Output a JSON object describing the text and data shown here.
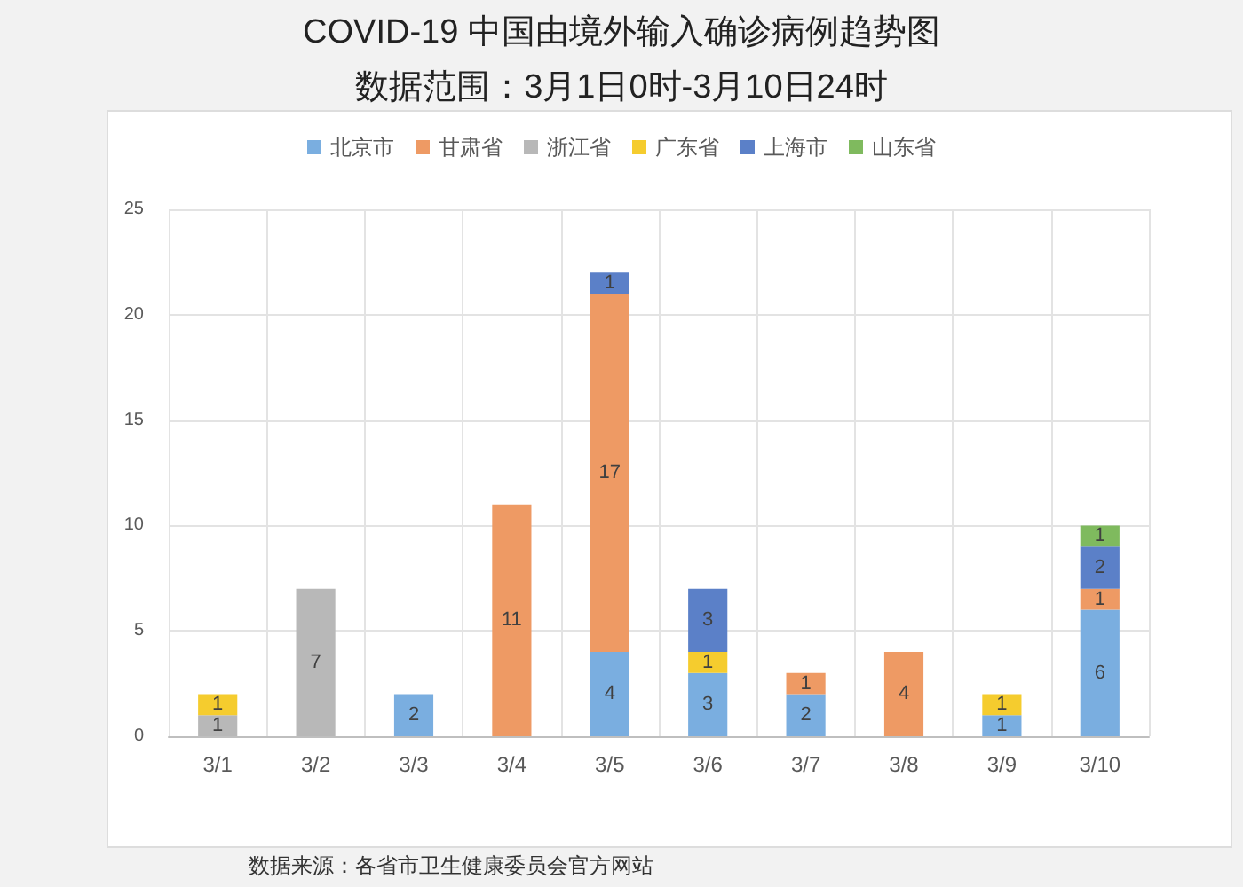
{
  "chart_data": {
    "type": "bar",
    "title": "COVID-19 中国由境外输入确诊病例趋势图",
    "subtitle": "数据范围：3月1日0时-3月10日24时",
    "categories": [
      "3/1",
      "3/2",
      "3/3",
      "3/4",
      "3/5",
      "3/6",
      "3/7",
      "3/8",
      "3/9",
      "3/10"
    ],
    "series": [
      {
        "name": "北京市",
        "color": "#7aaee0",
        "values": [
          null,
          null,
          2,
          null,
          4,
          3,
          2,
          null,
          1,
          6
        ]
      },
      {
        "name": "甘肃省",
        "color": "#ee9a64",
        "values": [
          null,
          null,
          null,
          11,
          17,
          null,
          1,
          4,
          null,
          1
        ]
      },
      {
        "name": "浙江省",
        "color": "#b8b8b8",
        "values": [
          1,
          7,
          null,
          null,
          null,
          null,
          null,
          null,
          null,
          null
        ]
      },
      {
        "name": "广东省",
        "color": "#f5cc2e",
        "values": [
          1,
          null,
          null,
          null,
          null,
          1,
          null,
          null,
          1,
          null
        ]
      },
      {
        "name": "上海市",
        "color": "#5b80c8",
        "values": [
          null,
          null,
          null,
          null,
          1,
          3,
          null,
          null,
          null,
          2
        ]
      },
      {
        "name": "山东省",
        "color": "#7fba5e",
        "values": [
          null,
          null,
          null,
          null,
          null,
          null,
          null,
          null,
          null,
          1
        ]
      }
    ],
    "stacked": true,
    "ylim": [
      0,
      25
    ],
    "yticks": [
      0,
      5,
      10,
      15,
      20,
      25
    ],
    "grid": true,
    "legend": "top",
    "data_labels": true,
    "annotations": [
      "数据来源：各省市卫生健康委员会官方网站"
    ]
  }
}
